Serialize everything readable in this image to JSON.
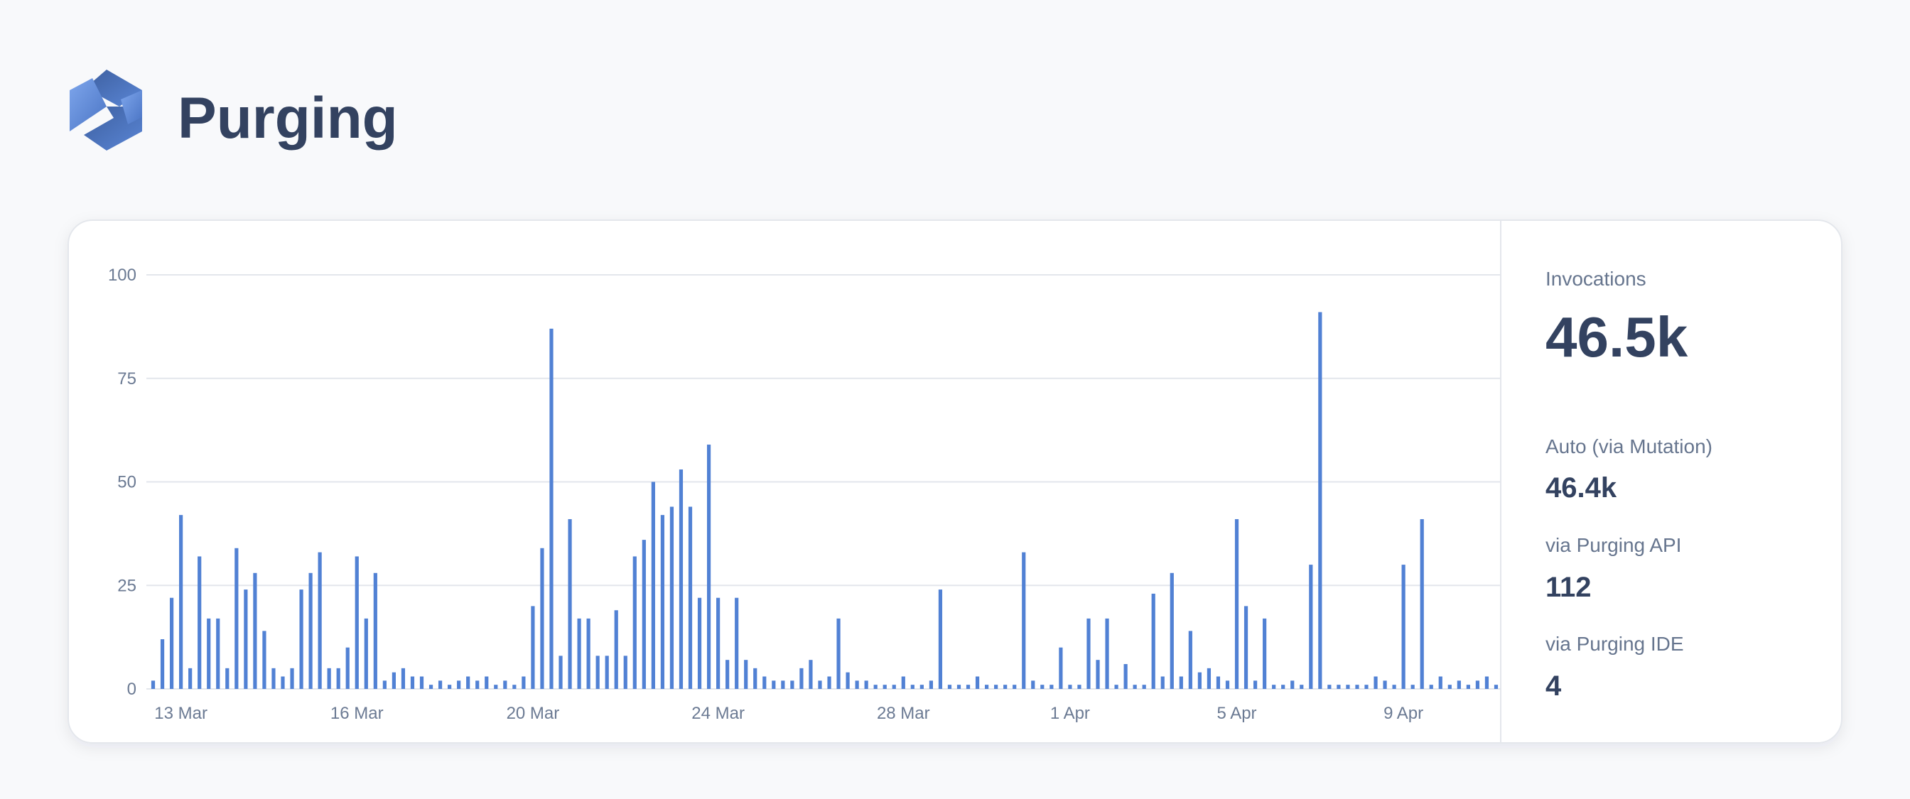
{
  "header": {
    "title": "Purging"
  },
  "chart_data": {
    "type": "bar",
    "color": "#5181d4",
    "grid": true,
    "ylim": [
      0,
      100
    ],
    "yticks": [
      0,
      25,
      50,
      75,
      100
    ],
    "categories": [
      null,
      null,
      null,
      "13 Mar",
      null,
      null,
      null,
      null,
      null,
      null,
      null,
      null,
      null,
      null,
      null,
      null,
      null,
      null,
      null,
      null,
      null,
      null,
      "16 Mar",
      null,
      null,
      null,
      null,
      null,
      null,
      null,
      null,
      null,
      null,
      null,
      null,
      null,
      null,
      null,
      null,
      null,
      null,
      "20 Mar",
      null,
      null,
      null,
      null,
      null,
      null,
      null,
      null,
      null,
      null,
      null,
      null,
      null,
      null,
      null,
      null,
      null,
      null,
      null,
      "24 Mar",
      null,
      null,
      null,
      null,
      null,
      null,
      null,
      null,
      null,
      null,
      null,
      null,
      null,
      null,
      null,
      null,
      null,
      null,
      null,
      "28 Mar",
      null,
      null,
      null,
      null,
      null,
      null,
      null,
      null,
      null,
      null,
      null,
      null,
      null,
      null,
      null,
      null,
      null,
      "1 Apr",
      null,
      null,
      null,
      null,
      null,
      null,
      null,
      null,
      null,
      null,
      null,
      null,
      null,
      null,
      null,
      null,
      null,
      "5 Apr",
      null,
      null,
      null,
      null,
      null,
      null,
      null,
      null,
      null,
      null,
      null,
      null,
      null,
      null,
      null,
      null,
      null,
      "9 Apr",
      null,
      null,
      null,
      null,
      null,
      null,
      null,
      null,
      null,
      null
    ],
    "values": [
      2,
      12,
      22,
      42,
      5,
      32,
      17,
      17,
      5,
      34,
      24,
      28,
      14,
      5,
      3,
      5,
      24,
      28,
      33,
      5,
      5,
      10,
      32,
      17,
      28,
      2,
      4,
      5,
      3,
      3,
      1,
      2,
      1,
      2,
      3,
      2,
      3,
      1,
      2,
      1,
      3,
      20,
      34,
      87,
      8,
      41,
      17,
      17,
      8,
      8,
      19,
      8,
      32,
      36,
      50,
      42,
      44,
      53,
      44,
      22,
      59,
      22,
      7,
      22,
      7,
      5,
      3,
      2,
      2,
      2,
      5,
      7,
      2,
      3,
      17,
      4,
      2,
      2,
      1,
      1,
      1,
      3,
      1,
      1,
      2,
      24,
      1,
      1,
      1,
      3,
      1,
      1,
      1,
      1,
      33,
      2,
      1,
      1,
      10,
      1,
      1,
      17,
      7,
      17,
      1,
      6,
      1,
      1,
      23,
      3,
      28,
      3,
      14,
      4,
      5,
      3,
      2,
      41,
      20,
      2,
      17,
      1,
      1,
      2,
      1,
      30,
      91,
      1,
      1,
      1,
      1,
      1,
      3,
      2,
      1,
      30,
      1,
      41,
      1,
      3,
      1,
      2,
      1,
      2,
      3,
      1
    ]
  },
  "stats": {
    "total": {
      "label": "Invocations",
      "value": "46.5k"
    },
    "items": [
      {
        "label": "Auto (via Mutation)",
        "value": "46.4k"
      },
      {
        "label": "via Purging API",
        "value": 112
      },
      {
        "label": "via Purging IDE",
        "value": 4
      }
    ]
  }
}
